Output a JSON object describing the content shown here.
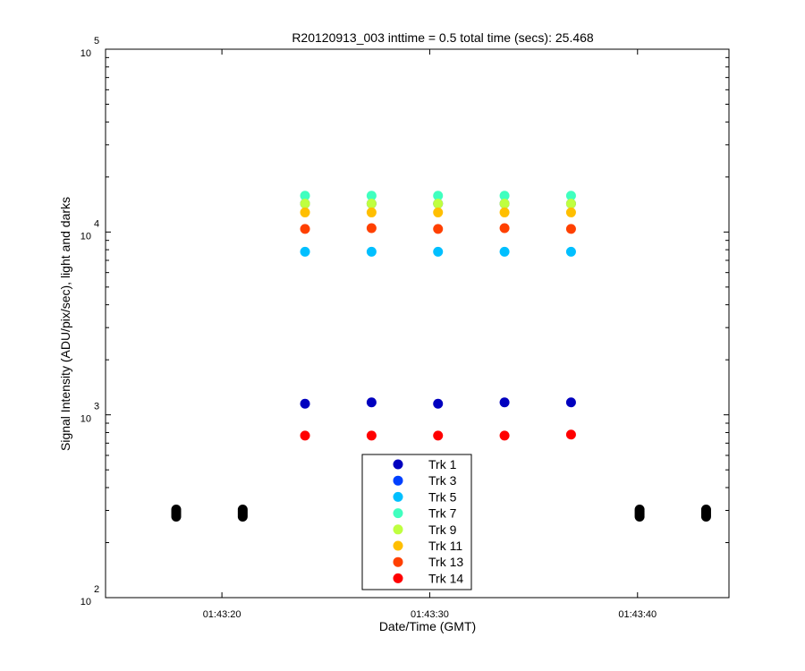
{
  "chart_data": {
    "type": "scatter",
    "title": "R20120913_003 inttime = 0.5 total time (secs): 25.468",
    "xlabel": "Date/Time (GMT)",
    "ylabel": "Signal Intensity (ADU/pix/sec), light and darks",
    "yscale": "log",
    "ylim": [
      100,
      100000
    ],
    "xlim": [
      "01:43:14.4",
      "01:43:44.4"
    ],
    "x_ticks": [
      "01:43:20",
      "01:43:30",
      "01:43:40"
    ],
    "y_tick_labels": [
      {
        "base": "10",
        "exp": "2",
        "value": 100
      },
      {
        "base": "10",
        "exp": "3",
        "value": 1000
      },
      {
        "base": "10",
        "exp": "4",
        "value": 10000
      },
      {
        "base": "10",
        "exp": "5",
        "value": 100000
      }
    ],
    "grid": false,
    "legend_position": "bottom-center",
    "x": [
      "01:43:24.0",
      "01:43:27.2",
      "01:43:30.4",
      "01:43:33.6",
      "01:43:36.8"
    ],
    "series": [
      {
        "name": "Trk 1",
        "color": "#0000bf",
        "values": [
          1150,
          1170,
          1150,
          1170,
          1170
        ]
      },
      {
        "name": "Trk 3",
        "color": "#0040ff",
        "values": [
          14300,
          14300,
          14300,
          14300,
          14300
        ]
      },
      {
        "name": "Trk 5",
        "color": "#00bfff",
        "values": [
          7800,
          7800,
          7800,
          7800,
          7800
        ]
      },
      {
        "name": "Trk 7",
        "color": "#40ffbf",
        "values": [
          15800,
          15800,
          15800,
          15800,
          15800
        ]
      },
      {
        "name": "Trk 9",
        "color": "#bfff40",
        "values": [
          14300,
          14300,
          14300,
          14300,
          14300
        ]
      },
      {
        "name": "Trk 11",
        "color": "#ffbf00",
        "values": [
          12800,
          12800,
          12800,
          12800,
          12800
        ]
      },
      {
        "name": "Trk 13",
        "color": "#ff4000",
        "values": [
          10400,
          10500,
          10400,
          10500,
          10400
        ]
      },
      {
        "name": "Trk 14",
        "color": "#ff0000",
        "values": [
          770,
          770,
          770,
          770,
          780
        ]
      }
    ],
    "dark_points": {
      "color": "#000000",
      "x": [
        "01:43:17.8",
        "01:43:21.0",
        "01:43:40.1",
        "01:43:43.3"
      ],
      "values": [
        290,
        290,
        290,
        290
      ]
    }
  }
}
